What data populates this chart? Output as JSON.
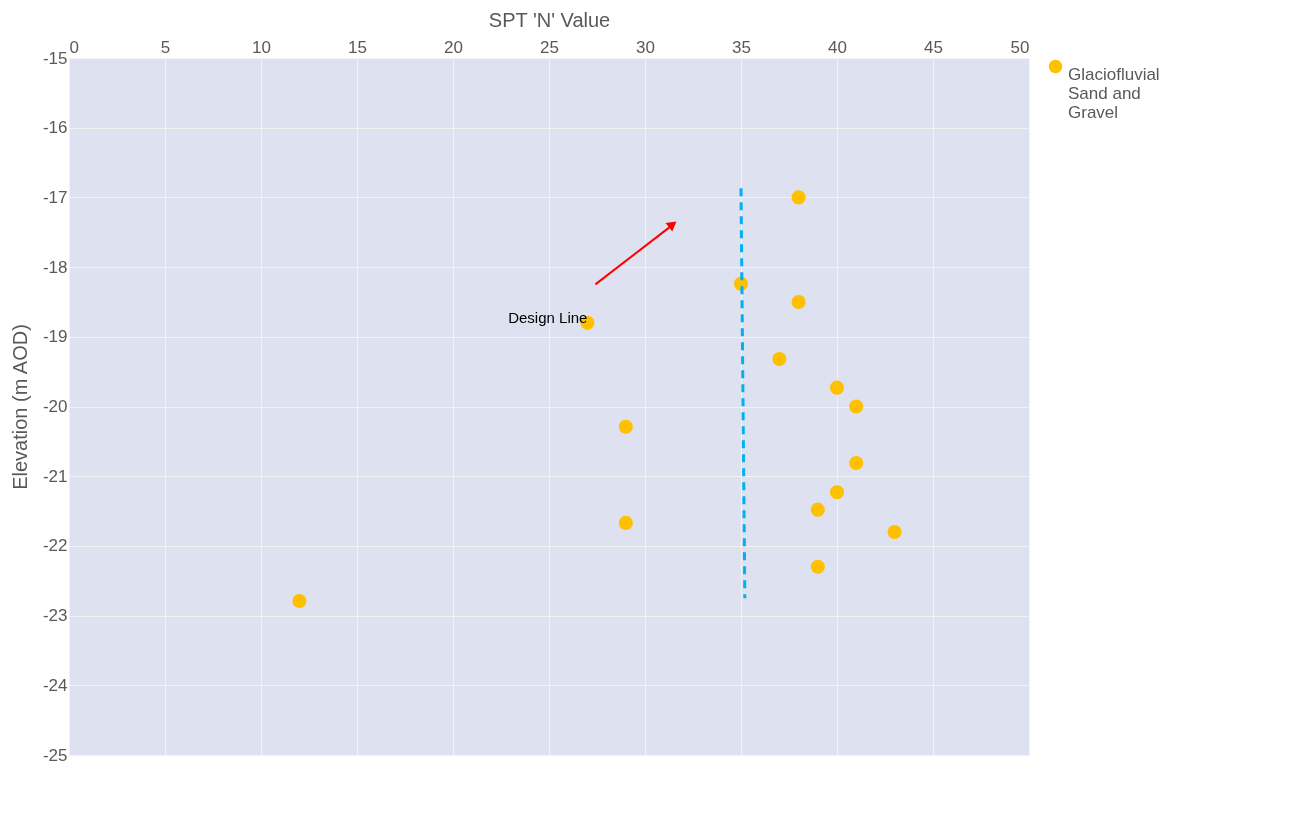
{
  "chart_data": {
    "type": "scatter",
    "xlabel": "SPT 'N' Value",
    "ylabel": "Elevation (m AOD)",
    "xlim": [
      0,
      50
    ],
    "xticks": [
      0,
      5,
      10,
      15,
      20,
      25,
      30,
      35,
      40,
      45,
      50
    ],
    "ylim": [
      -25,
      -15
    ],
    "yticks": [
      -15,
      -16,
      -17,
      -18,
      -19,
      -20,
      -21,
      -22,
      -23,
      -24,
      -25
    ],
    "grid": true,
    "legend": "right",
    "marker": "circle",
    "series": [
      {
        "name": "Glaciofluvial Sand and Gravel",
        "color": "#ffc000",
        "x": [
          38,
          35,
          38,
          27,
          37,
          40,
          41,
          29,
          41,
          40,
          39,
          29,
          43,
          39,
          12
        ],
        "values": [
          -17.0,
          -18.24,
          -18.5,
          -18.8,
          -19.32,
          -19.73,
          -20.0,
          -20.29,
          -20.81,
          -21.23,
          -21.48,
          -21.67,
          -21.8,
          -22.3,
          -22.79
        ]
      },
      {
        "type": "line",
        "color": "#00b0f0",
        "line_style": "dashed",
        "marker": "none",
        "x": [
          35,
          35.2
        ],
        "values": [
          -16.87,
          -22.75
        ]
      }
    ],
    "annotations": [
      "Design Line"
    ]
  }
}
